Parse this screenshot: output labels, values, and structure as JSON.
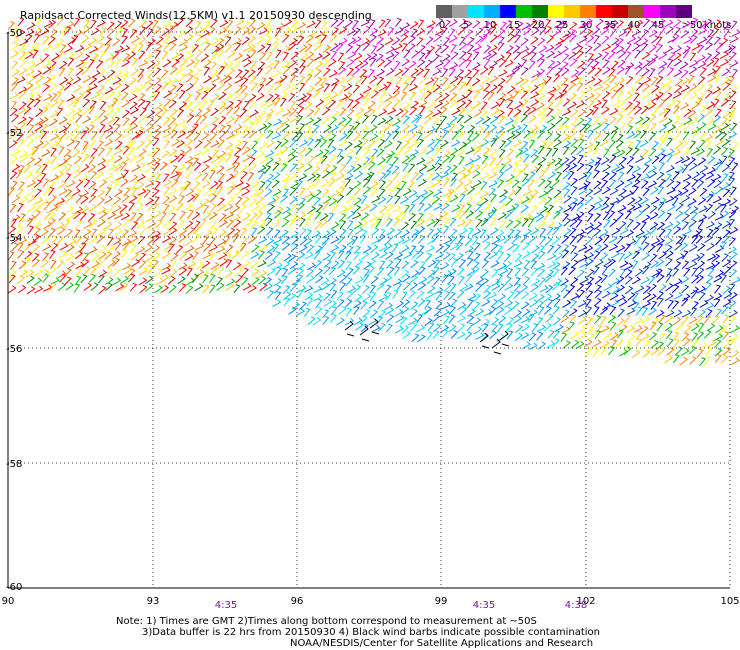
{
  "title": "Rapidsact Corrected Winds(12.5KM) v1.1 20150930 descending",
  "legend": {
    "labels": [
      "0",
      "5",
      "10",
      "15",
      "20",
      "25",
      "30",
      "35",
      "40",
      "45",
      ">50"
    ],
    "unit": "knots",
    "colors": [
      "#606060",
      "#a0a0a0",
      "#00e5ff",
      "#00b0ff",
      "#0000ff",
      "#00c000",
      "#008000",
      "#ffff00",
      "#ffc800",
      "#ff8000",
      "#ff0000",
      "#c80000",
      "#a0522d",
      "#ff00ff",
      "#a000c0",
      "#600080"
    ]
  },
  "map": {
    "lat_labels": [
      "-50",
      "-52",
      "-54",
      "-56",
      "-58",
      "-60"
    ],
    "lon_labels": [
      "90",
      "93",
      "96",
      "99",
      "102",
      "105"
    ],
    "times": [
      "4:35",
      "4:35",
      "4:38"
    ]
  },
  "notes": {
    "line1": "Note: 1) Times are GMT 2)Times along bottom correspond to measurement at ~50S",
    "line2": "3)Data buffer is 22 hrs from 20150930 4) Black wind barbs indicate possible contamination",
    "line3": "NOAA/NESDIS/Center for Satellite Applications and Research"
  }
}
